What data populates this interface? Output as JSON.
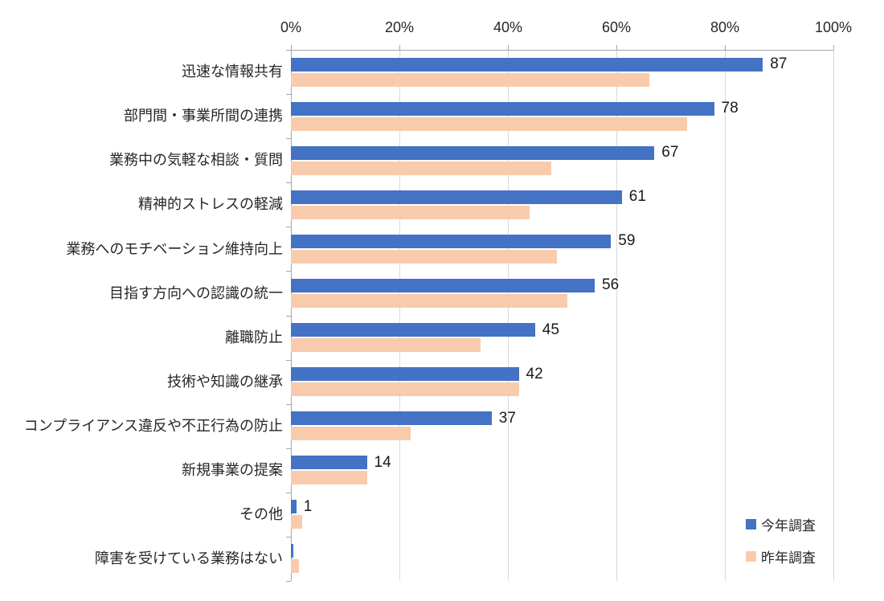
{
  "chart_data": {
    "type": "bar",
    "orientation": "horizontal",
    "title": "",
    "x_axis": {
      "position": "top",
      "min": 0,
      "max": 100,
      "tick_step": 20,
      "tick_labels": [
        "0%",
        "20%",
        "40%",
        "60%",
        "80%",
        "100%"
      ]
    },
    "grid": true,
    "categories": [
      "迅速な情報共有",
      "部門間・事業所間の連携",
      "業務中の気軽な相談・質問",
      "精神的ストレスの軽減",
      "業務へのモチベーション維持向上",
      "目指す方向への認識の統一",
      "離職防止",
      "技術や知識の継承",
      "コンプライアンス違反や不正行為の防止",
      "新規事業の提案",
      "その他",
      "障害を受けている業務はない"
    ],
    "series": [
      {
        "name": "今年調査",
        "color": "#4472C4",
        "values": [
          87,
          78,
          67,
          61,
          59,
          56,
          45,
          42,
          37,
          14,
          1,
          0.5
        ],
        "data_labels": [
          "87",
          "78",
          "67",
          "61",
          "59",
          "56",
          "45",
          "42",
          "37",
          "14",
          "1",
          ""
        ]
      },
      {
        "name": "昨年調査",
        "color": "#F8CBAD",
        "values": [
          66,
          73,
          48,
          44,
          49,
          51,
          35,
          42,
          22,
          14,
          2,
          1.5
        ],
        "data_labels": [
          "",
          "",
          "",
          "",
          "",
          "",
          "",
          "",
          "",
          "",
          "",
          ""
        ]
      }
    ],
    "legend": {
      "position": "bottom-right",
      "entries": [
        "今年調査",
        "昨年調査"
      ]
    },
    "colors": {
      "axis_line": "#A6A6A6",
      "gridline": "#D9D9D9",
      "text": "#262626"
    }
  }
}
